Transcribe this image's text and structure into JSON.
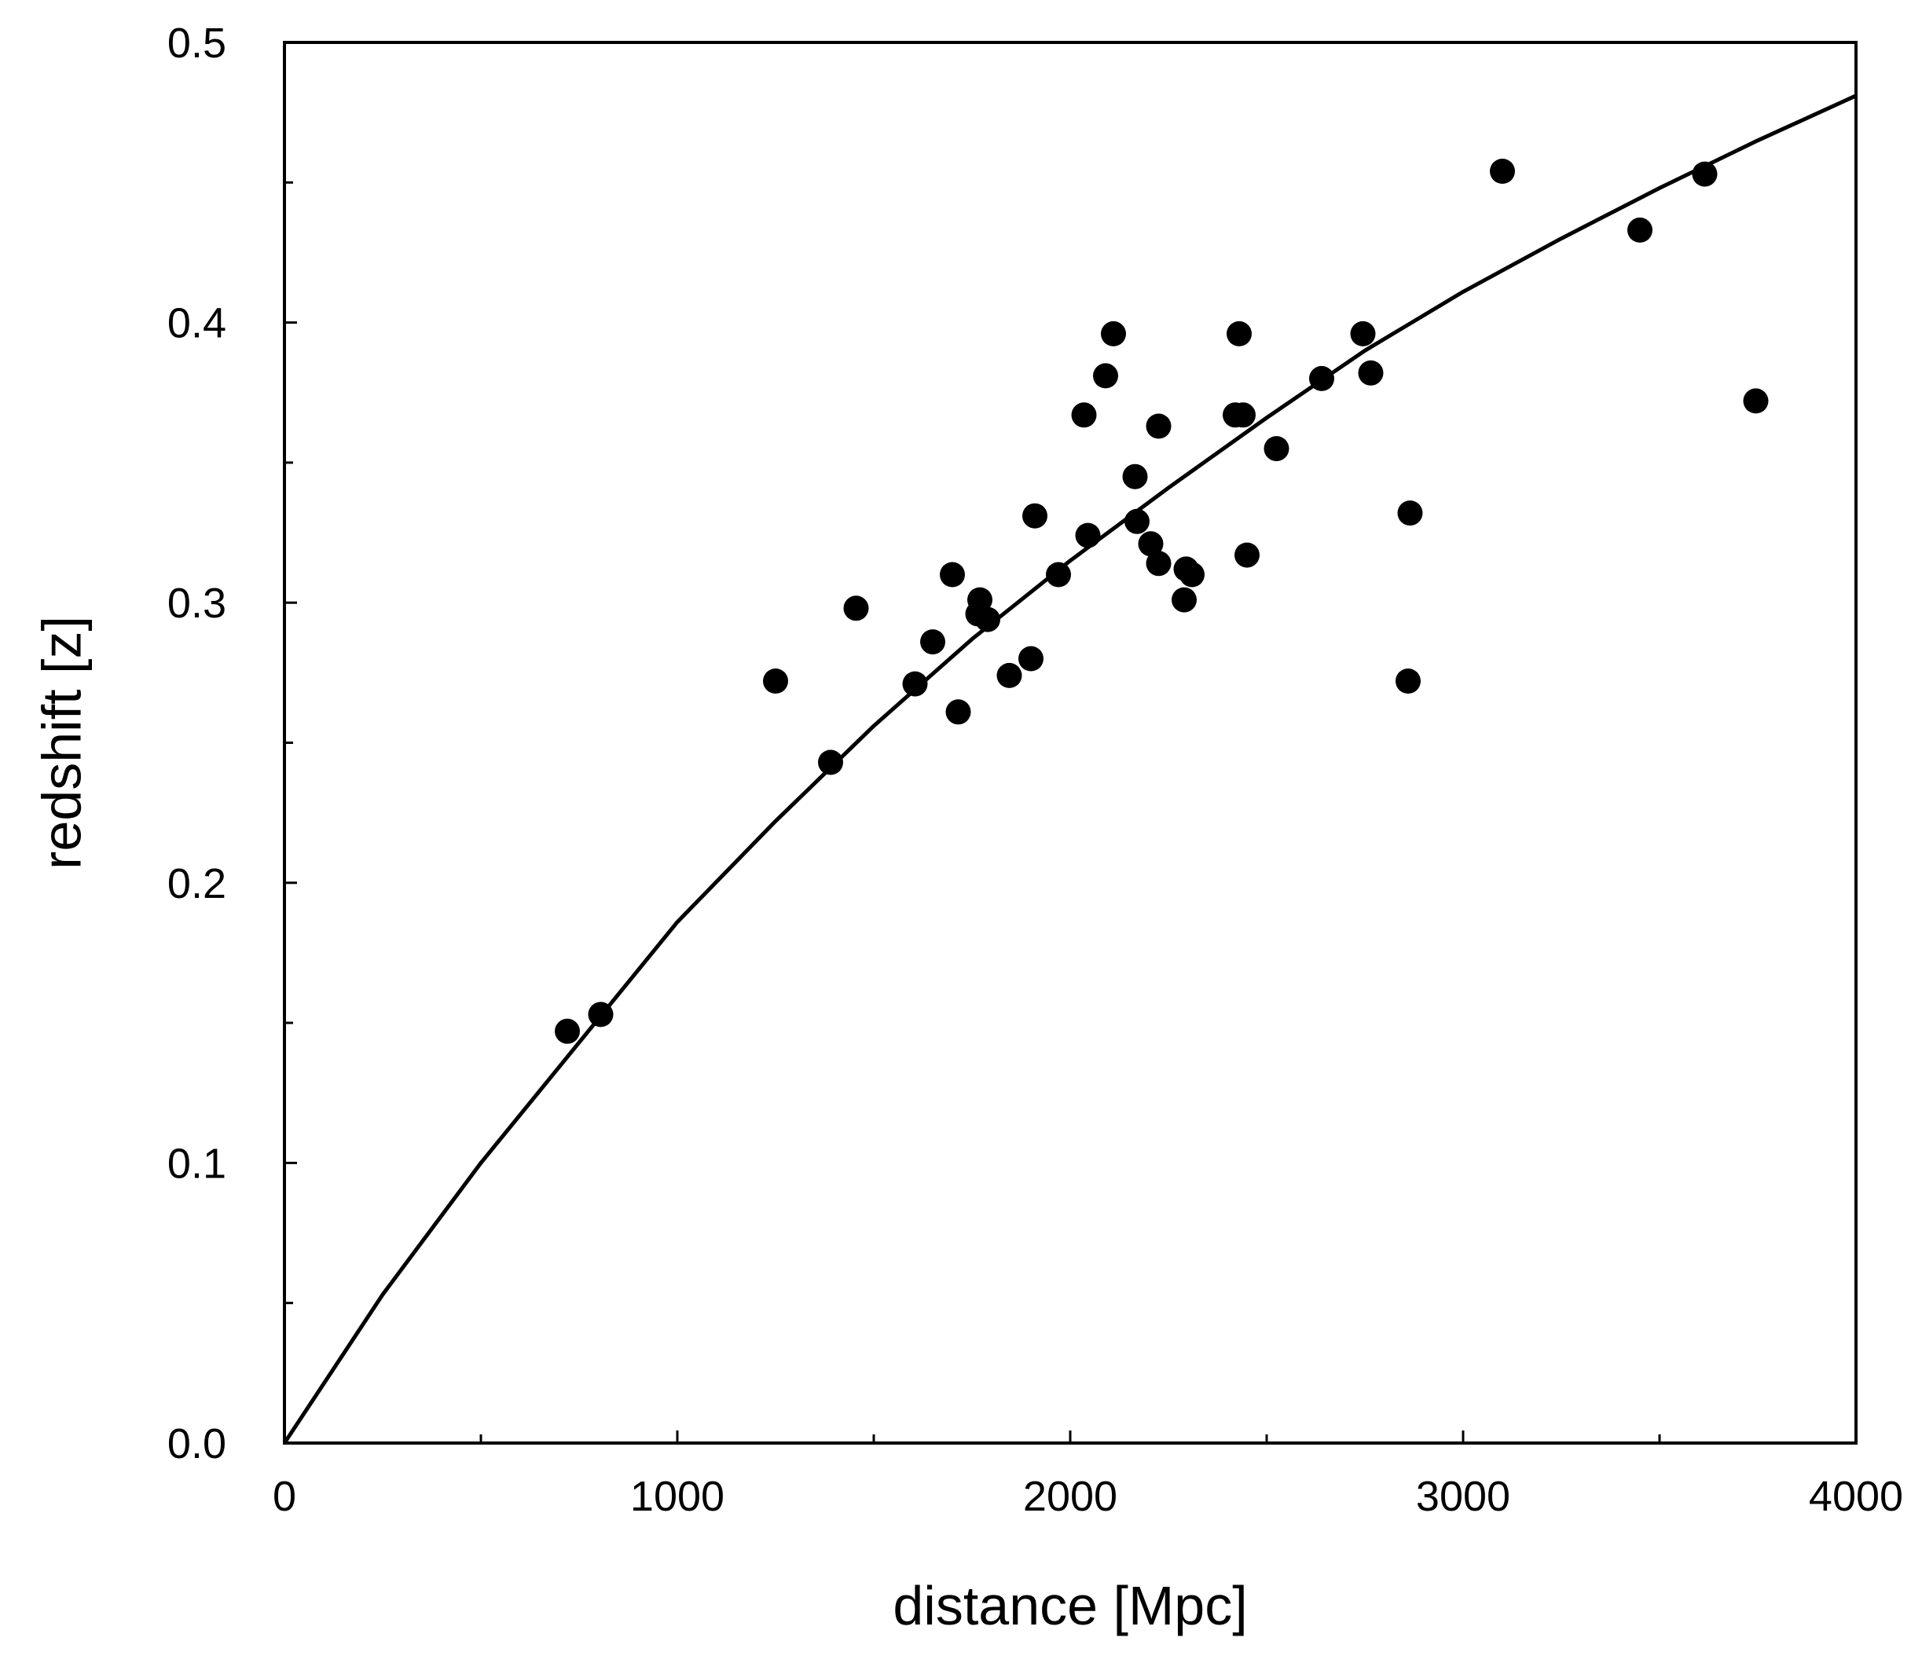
{
  "chart_data": {
    "type": "scatter",
    "title": "",
    "xlabel": "distance [Mpc]",
    "ylabel": "redshift [z]",
    "xlim": [
      0,
      4000
    ],
    "ylim": [
      0.0,
      0.5
    ],
    "x_ticks": [
      0,
      1000,
      2000,
      3000,
      4000
    ],
    "x_tick_labels": [
      "0",
      "1000",
      "2000",
      "3000",
      "4000"
    ],
    "x_minor_ticks": [
      500,
      1500,
      2500,
      3500
    ],
    "y_ticks": [
      0.0,
      0.1,
      0.2,
      0.3,
      0.4,
      0.5
    ],
    "y_tick_labels": [
      "0.0",
      "0.1",
      "0.2",
      "0.3",
      "0.4",
      "0.5"
    ],
    "y_minor_ticks": [
      0.05,
      0.15,
      0.25,
      0.35,
      0.45
    ],
    "grid": false,
    "legend": "none",
    "colors": {
      "points": "#000000",
      "line": "#000000",
      "axes": "#000000"
    },
    "series": [
      {
        "kind": "points",
        "points": [
          [
            720,
            0.147
          ],
          [
            805,
            0.153
          ],
          [
            1250,
            0.272
          ],
          [
            1390,
            0.243
          ],
          [
            1455,
            0.298
          ],
          [
            1605,
            0.271
          ],
          [
            1650,
            0.286
          ],
          [
            1700,
            0.31
          ],
          [
            1715,
            0.261
          ],
          [
            1765,
            0.296
          ],
          [
            1770,
            0.301
          ],
          [
            1790,
            0.294
          ],
          [
            1845,
            0.274
          ],
          [
            1900,
            0.28
          ],
          [
            1910,
            0.331
          ],
          [
            1970,
            0.31
          ],
          [
            2035,
            0.367
          ],
          [
            2045,
            0.324
          ],
          [
            2090,
            0.381
          ],
          [
            2110,
            0.396
          ],
          [
            2165,
            0.345
          ],
          [
            2170,
            0.329
          ],
          [
            2205,
            0.321
          ],
          [
            2225,
            0.314
          ],
          [
            2225,
            0.363
          ],
          [
            2290,
            0.301
          ],
          [
            2295,
            0.312
          ],
          [
            2310,
            0.31
          ],
          [
            2420,
            0.367
          ],
          [
            2430,
            0.396
          ],
          [
            2440,
            0.367
          ],
          [
            2450,
            0.317
          ],
          [
            2525,
            0.355
          ],
          [
            2640,
            0.38
          ],
          [
            2745,
            0.396
          ],
          [
            2765,
            0.382
          ],
          [
            2860,
            0.272
          ],
          [
            2865,
            0.332
          ],
          [
            3100,
            0.454
          ],
          [
            3450,
            0.433
          ],
          [
            3615,
            0.453
          ],
          [
            3745,
            0.372
          ]
        ]
      },
      {
        "kind": "curve",
        "points": [
          [
            0,
            0.0
          ],
          [
            250,
            0.053
          ],
          [
            500,
            0.1
          ],
          [
            750,
            0.143
          ],
          [
            1000,
            0.186
          ],
          [
            1250,
            0.222
          ],
          [
            1500,
            0.256
          ],
          [
            1750,
            0.287
          ],
          [
            2000,
            0.315
          ],
          [
            2250,
            0.341
          ],
          [
            2500,
            0.366
          ],
          [
            2750,
            0.39
          ],
          [
            3000,
            0.411
          ],
          [
            3250,
            0.43
          ],
          [
            3500,
            0.448
          ],
          [
            3750,
            0.465
          ],
          [
            4000,
            0.481
          ]
        ]
      }
    ]
  }
}
